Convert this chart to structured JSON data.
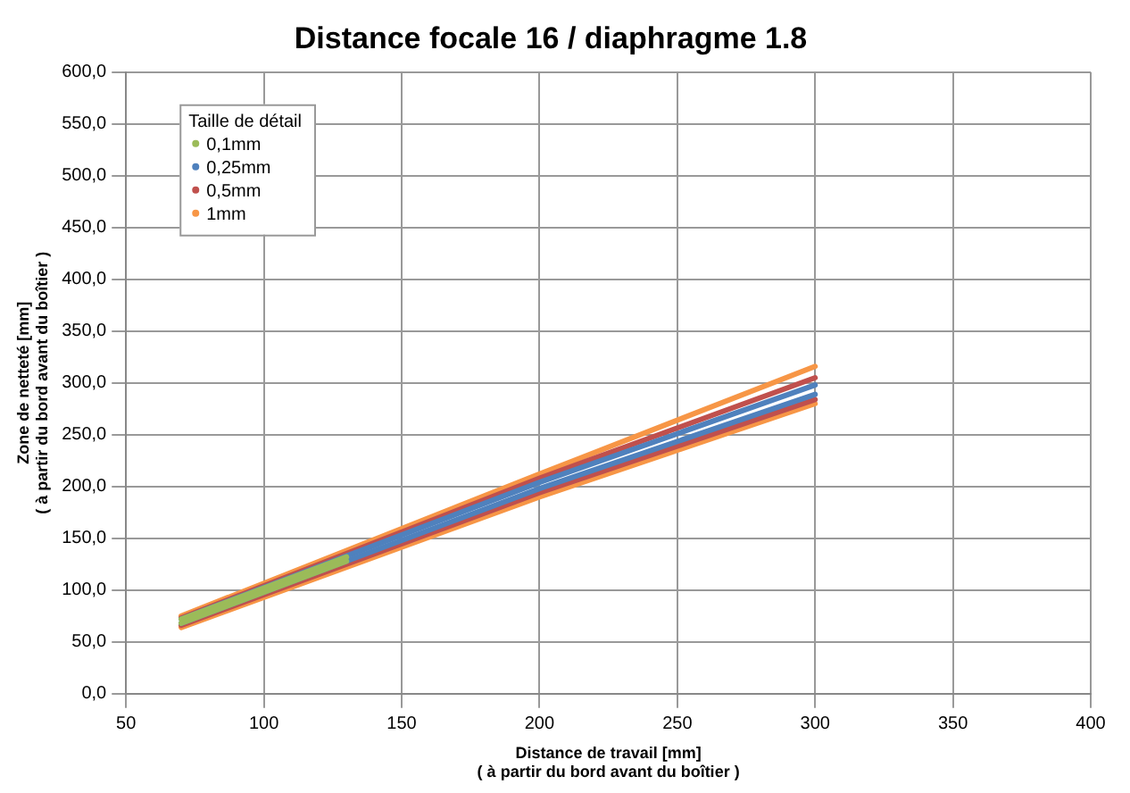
{
  "chart_data": {
    "type": "line",
    "title": "Distance focale 16 / diaphragme 1.8",
    "xlabel": "Distance de travail [mm]\n( à partir du bord avant du boîtier )",
    "ylabel": "Zone de netteté [mm]\n( à partir du bord avant du boîtier )",
    "legend_title": "Taille de détail",
    "legend": "top left",
    "grid": true,
    "marker": "none",
    "line_style": "solid",
    "xlim": [
      50,
      400
    ],
    "xticks": [
      50,
      100,
      150,
      200,
      250,
      300,
      350,
      400
    ],
    "ylim": [
      0,
      600
    ],
    "yticks": [
      {
        "value": 0,
        "label": "0,0"
      },
      {
        "value": 50,
        "label": "50,0"
      },
      {
        "value": 100,
        "label": "100,0"
      },
      {
        "value": 150,
        "label": "150,0"
      },
      {
        "value": 200,
        "label": "200,0"
      },
      {
        "value": 250,
        "label": "250,0"
      },
      {
        "value": 300,
        "label": "300,0"
      },
      {
        "value": 350,
        "label": "350,0"
      },
      {
        "value": 400,
        "label": "400,0"
      },
      {
        "value": 450,
        "label": "450,0"
      },
      {
        "value": 500,
        "label": "500,0"
      },
      {
        "value": 550,
        "label": "550,0"
      },
      {
        "value": 600,
        "label": "600,0"
      }
    ],
    "series": [
      {
        "color": "#f79646",
        "x": [
          70,
          200,
          300
        ],
        "values": [
          75,
          212,
          316
        ]
      },
      {
        "name": "1mm",
        "color": "#f79646",
        "x": [
          70,
          200,
          300
        ],
        "values": [
          64,
          190,
          280
        ]
      },
      {
        "color": "#c0504d",
        "x": [
          70,
          200,
          300
        ],
        "values": [
          73,
          208,
          305
        ]
      },
      {
        "name": "0,5mm",
        "color": "#c0504d",
        "x": [
          70,
          200,
          300
        ],
        "values": [
          66,
          194,
          284
        ]
      },
      {
        "color": "#4f81bd",
        "x": [
          70,
          200,
          300
        ],
        "values": [
          72,
          204,
          298
        ]
      },
      {
        "name": "0,25mm",
        "color": "#4f81bd",
        "x": [
          70,
          200,
          300
        ],
        "values": [
          68,
          198,
          289
        ]
      },
      {
        "color": "#9bbb59",
        "x": [
          70,
          130
        ],
        "values": [
          72,
          132
        ]
      },
      {
        "name": "0,1mm",
        "color": "#9bbb59",
        "x": [
          70,
          130
        ],
        "values": [
          68,
          128
        ]
      }
    ]
  }
}
